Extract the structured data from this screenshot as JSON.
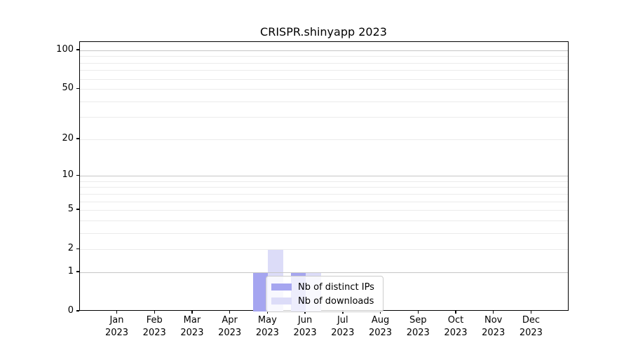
{
  "figure": {
    "title": "CRISPR.shinyapp 2023"
  },
  "chart_data": {
    "type": "bar",
    "title": "CRISPR.shinyapp 2023",
    "xlabel": "",
    "ylabel": "",
    "x": {
      "months": [
        "Jan",
        "Feb",
        "Mar",
        "Apr",
        "May",
        "Jun",
        "Jul",
        "Aug",
        "Sep",
        "Oct",
        "Nov",
        "Dec"
      ],
      "year": "2023"
    },
    "series": [
      {
        "name": "Nb of distinct IPs",
        "color": "#a5a5f0",
        "values": [
          0,
          0,
          0,
          0,
          1,
          1,
          0,
          0,
          0,
          0,
          0,
          0
        ]
      },
      {
        "name": "Nb of downloads",
        "color": "#dcdcf8",
        "values": [
          0,
          0,
          0,
          0,
          2,
          1,
          0,
          0,
          0,
          0,
          0,
          0
        ]
      }
    ],
    "yaxis": {
      "scale": "log1p",
      "tick_values": [
        0,
        1,
        2,
        5,
        10,
        20,
        50,
        100
      ],
      "tick_labels": [
        "0",
        "1",
        "2",
        "5",
        "10",
        "20",
        "50",
        "100"
      ],
      "major_grid_values": [
        1,
        10,
        100
      ],
      "minor_grid_values": [
        2,
        3,
        4,
        5,
        6,
        7,
        8,
        9,
        20,
        30,
        40,
        50,
        60,
        70,
        80,
        90
      ],
      "ylim": [
        0,
        115
      ]
    },
    "legend": {
      "position": "lower-center-inside",
      "entries": [
        "Nb of distinct IPs",
        "Nb of downloads"
      ]
    },
    "grid": true
  }
}
